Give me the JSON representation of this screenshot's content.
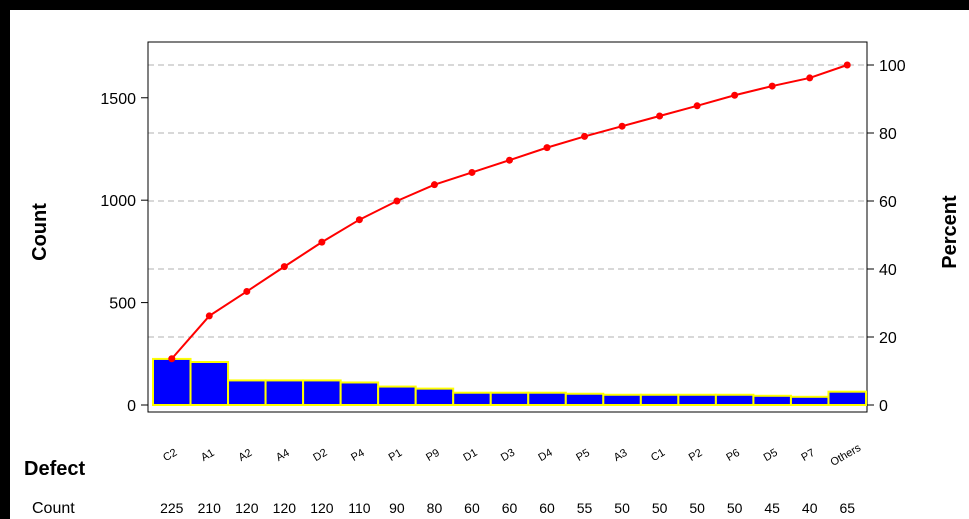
{
  "chart_data": {
    "type": "pareto",
    "categories": [
      "C2",
      "A1",
      "A2",
      "A4",
      "D2",
      "P4",
      "P1",
      "P9",
      "D1",
      "D3",
      "D4",
      "P5",
      "A3",
      "C1",
      "P2",
      "P6",
      "D5",
      "P7",
      "Others"
    ],
    "counts": [
      225,
      210,
      120,
      120,
      120,
      110,
      90,
      80,
      60,
      60,
      60,
      55,
      50,
      50,
      50,
      50,
      45,
      40,
      65
    ],
    "cumulative_percent": [
      13.6,
      26.2,
      33.4,
      40.7,
      47.9,
      54.5,
      60.0,
      64.8,
      68.4,
      72.0,
      75.7,
      79.0,
      82.0,
      85.0,
      88.0,
      91.1,
      93.8,
      96.2,
      100.0
    ],
    "ylabel": "Count",
    "y2label": "Percent",
    "xlabel": "Defect",
    "row_label": "Count",
    "ylim": [
      0,
      1660
    ],
    "y_ticks": [
      0,
      500,
      1000,
      1500
    ],
    "y2lim": [
      0,
      100
    ],
    "y2_ticks": [
      0,
      20,
      40,
      60,
      80,
      100
    ],
    "bar_color": "#0000ff",
    "bar_edge_color": "#ffff00",
    "line_color": "#ff0000",
    "grid": true
  }
}
